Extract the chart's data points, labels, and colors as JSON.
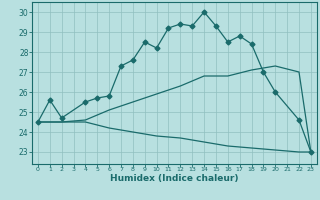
{
  "title": "",
  "xlabel": "Humidex (Indice chaleur)",
  "bg_color": "#b8e0e0",
  "grid_color": "#90c0c0",
  "line_color": "#1a6b6b",
  "x_ticks": [
    0,
    1,
    2,
    3,
    4,
    5,
    6,
    7,
    8,
    9,
    10,
    11,
    12,
    13,
    14,
    15,
    16,
    17,
    18,
    19,
    20,
    21,
    22,
    23
  ],
  "y_ticks": [
    23,
    24,
    25,
    26,
    27,
    28,
    29,
    30
  ],
  "ylim": [
    22.4,
    30.5
  ],
  "xlim": [
    -0.5,
    23.5
  ],
  "curve1_x": [
    0,
    1,
    2,
    4,
    5,
    6,
    7,
    8,
    9,
    10,
    11,
    12,
    13,
    14,
    15,
    16,
    17,
    18,
    19,
    20,
    22,
    23
  ],
  "curve1_y": [
    24.5,
    25.6,
    24.7,
    25.5,
    25.7,
    25.8,
    27.3,
    27.6,
    28.5,
    28.2,
    29.2,
    29.4,
    29.3,
    30.0,
    29.3,
    28.5,
    28.8,
    28.4,
    27.0,
    26.0,
    24.6,
    23.0
  ],
  "curve2_x": [
    0,
    2,
    4,
    6,
    8,
    10,
    12,
    14,
    16,
    18,
    20,
    22,
    23
  ],
  "curve2_y": [
    24.5,
    24.5,
    24.6,
    25.1,
    25.5,
    25.9,
    26.3,
    26.8,
    26.8,
    27.1,
    27.3,
    27.0,
    23.0
  ],
  "curve3_x": [
    0,
    2,
    4,
    6,
    8,
    10,
    12,
    14,
    16,
    18,
    20,
    22,
    23
  ],
  "curve3_y": [
    24.5,
    24.5,
    24.5,
    24.2,
    24.0,
    23.8,
    23.7,
    23.5,
    23.3,
    23.2,
    23.1,
    23.0,
    23.0
  ]
}
